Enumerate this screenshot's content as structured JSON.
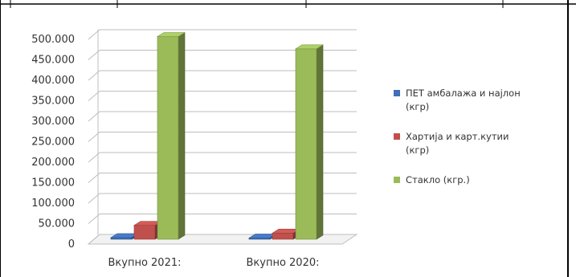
{
  "chart_data": {
    "type": "bar",
    "style": "3d-clustered-column",
    "categories": [
      "Вкупно 2021:",
      "Вкупно 2020:"
    ],
    "series": [
      {
        "name": "ПЕТ амбалажа  и најлон (кгр)",
        "legend_lines": [
          "ПЕТ амбалажа  и најлон",
          "(кгр)"
        ],
        "color": "#3f6fb5",
        "values": [
          4000,
          3000
        ]
      },
      {
        "name": "Хартија и карт.кутии (кгр)",
        "legend_lines": [
          "Хартија и карт.кутии",
          "(кгр)"
        ],
        "color": "#c0504d",
        "values": [
          34000,
          15000
        ]
      },
      {
        "name": "Стакло   (кгр.)",
        "legend_lines": [
          "Стакло   (кгр.)"
        ],
        "color": "#9bbb59",
        "values": [
          495000,
          465000
        ]
      }
    ],
    "ylim": [
      0,
      500000
    ],
    "yticks": [
      0,
      50000,
      100000,
      150000,
      200000,
      250000,
      300000,
      350000,
      400000,
      450000,
      500000
    ],
    "ytick_labels": [
      "0",
      "50.000",
      "100.000",
      "150.000",
      "200.000",
      "250.000",
      "300.000",
      "350.000",
      "400.000",
      "450.000",
      "500.000"
    ],
    "grid": true,
    "legend": "right"
  }
}
